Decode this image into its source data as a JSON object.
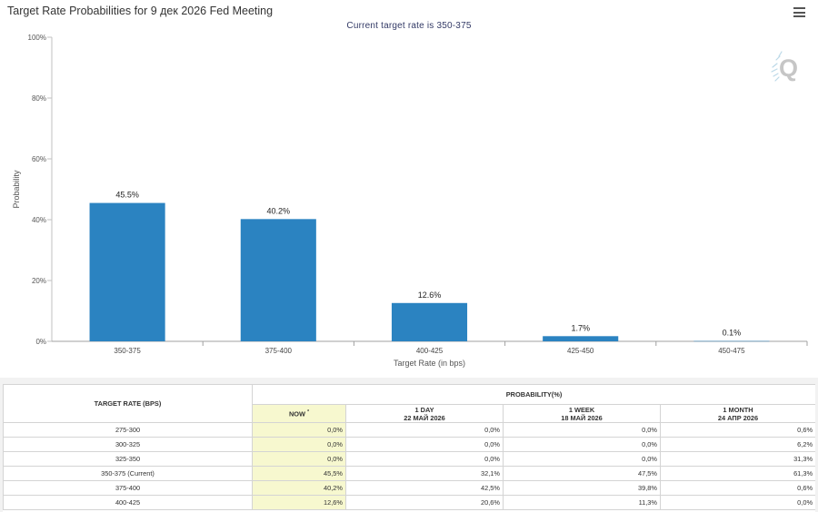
{
  "header": {
    "title": "Target Rate Probabilities for 9 дек 2026 Fed Meeting",
    "subtitle": "Current target rate is 350-375"
  },
  "icons": {
    "menu": "hamburger-menu-icon",
    "logo": "quikstrike-q-logo"
  },
  "chart_data": {
    "type": "bar",
    "title": "Target Rate Probabilities for 9 дек 2026 Fed Meeting",
    "subtitle": "Current target rate is 350-375",
    "xlabel": "Target Rate (in bps)",
    "ylabel": "Probability",
    "categories": [
      "350-375",
      "375-400",
      "400-425",
      "425-450",
      "450-475"
    ],
    "values": [
      45.5,
      40.2,
      12.6,
      1.7,
      0.1
    ],
    "data_labels": [
      "45.5%",
      "40.2%",
      "12.6%",
      "1.7%",
      "0.1%"
    ],
    "ylim": [
      0,
      100
    ],
    "yticks": [
      0,
      20,
      40,
      60,
      80,
      100
    ],
    "ytick_labels": [
      "0%",
      "20%",
      "40%",
      "60%",
      "80%",
      "100%"
    ],
    "bar_color": "#2b83c1",
    "grid": false,
    "legend": "none"
  },
  "table": {
    "col0_header": "TARGET RATE (BPS)",
    "group_header": "PROBABILITY(%)",
    "columns": [
      {
        "line1": "NOW",
        "line2": "",
        "marker": "*"
      },
      {
        "line1": "1 DAY",
        "line2": "22 МАЙ 2026",
        "marker": ""
      },
      {
        "line1": "1 WEEK",
        "line2": "18 МАЙ 2026",
        "marker": ""
      },
      {
        "line1": "1 MONTH",
        "line2": "24 АПР 2026",
        "marker": ""
      }
    ],
    "rows": [
      {
        "rate": "275-300",
        "values": [
          "0,0%",
          "0,0%",
          "0,0%",
          "0,6%"
        ]
      },
      {
        "rate": "300-325",
        "values": [
          "0,0%",
          "0,0%",
          "0,0%",
          "6,2%"
        ]
      },
      {
        "rate": "325-350",
        "values": [
          "0,0%",
          "0,0%",
          "0,0%",
          "31,3%"
        ]
      },
      {
        "rate": "350-375 (Current)",
        "values": [
          "45,5%",
          "32,1%",
          "47,5%",
          "61,3%"
        ]
      },
      {
        "rate": "375-400",
        "values": [
          "40,2%",
          "42,5%",
          "39,8%",
          "0,6%"
        ]
      },
      {
        "rate": "400-425",
        "values": [
          "12,6%",
          "20,6%",
          "11,3%",
          "0,0%"
        ]
      }
    ]
  }
}
